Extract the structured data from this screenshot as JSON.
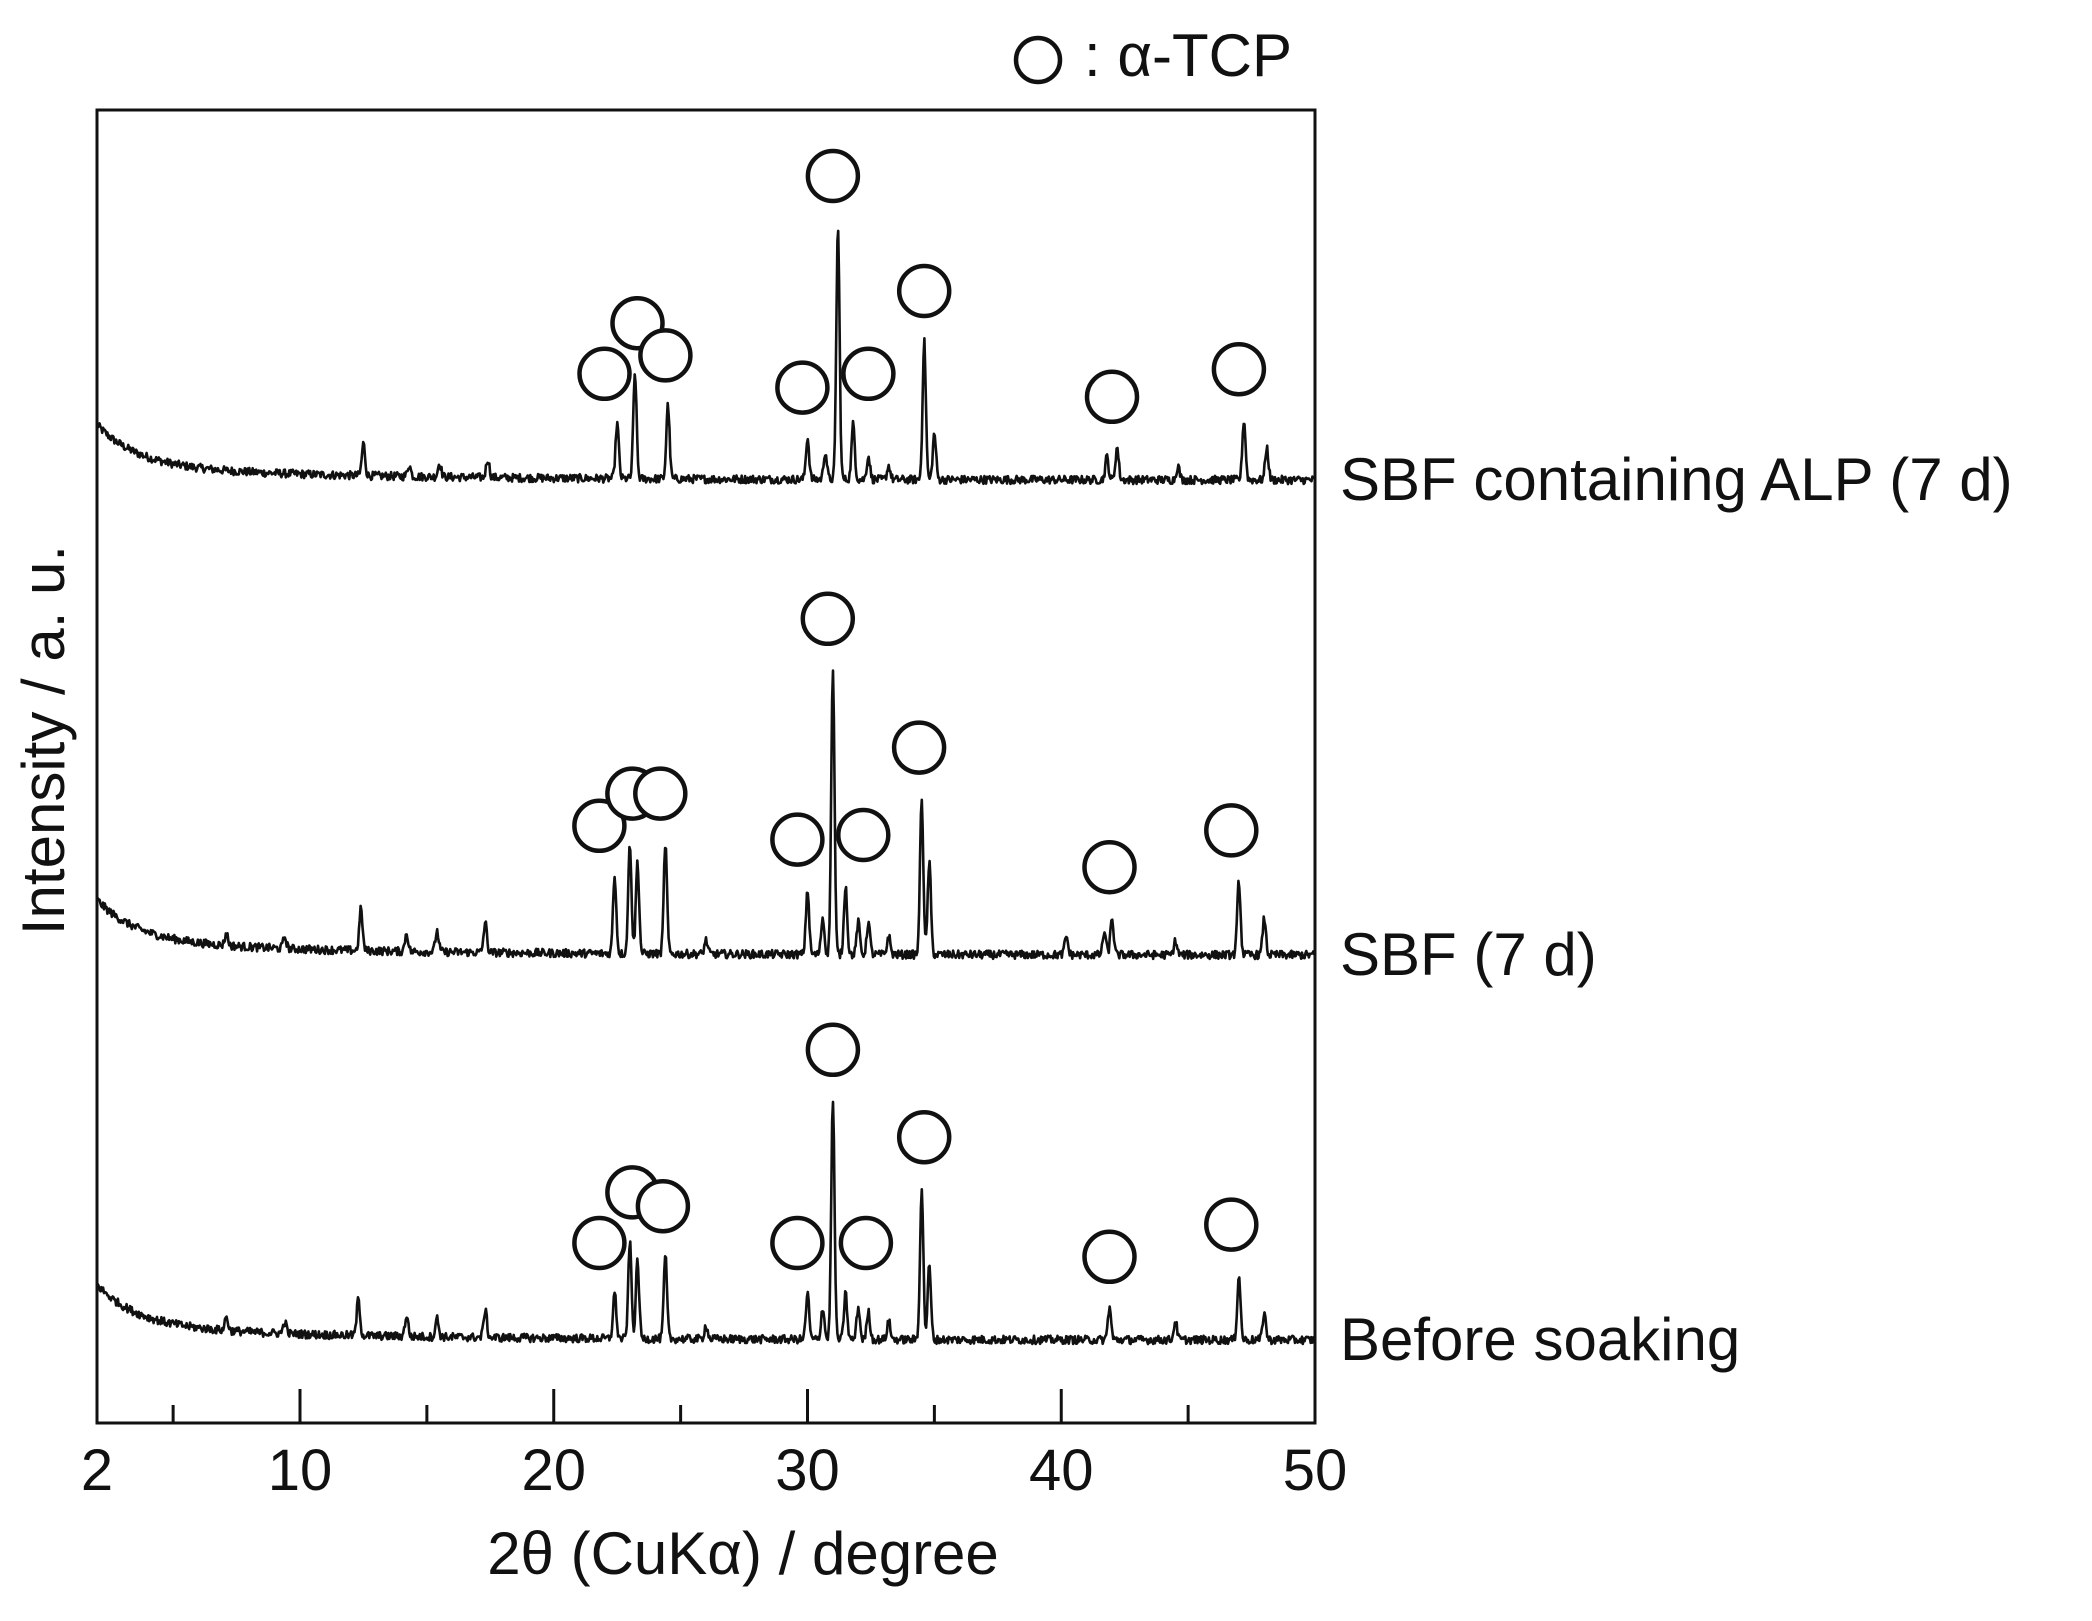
{
  "chart_data": {
    "type": "line",
    "title": "",
    "xlabel": "2θ (CuKα) / degree",
    "ylabel": "Intensity / a. u.",
    "xlim": [
      2,
      50
    ],
    "x_ticks_major": [
      2,
      10,
      20,
      30,
      40,
      50
    ],
    "x_ticks_minor": [
      5,
      15,
      25,
      35,
      45
    ],
    "y_ticks": [],
    "legend": {
      "marker": "open-circle",
      "label": ": α-TCP",
      "position": "top-right"
    },
    "series": [
      {
        "name": "SBF containing ALP (7 d)",
        "baseline": 0.0,
        "peaks": [
          {
            "x": 12.5,
            "h": 0.07
          },
          {
            "x": 14.3,
            "h": 0.025
          },
          {
            "x": 15.5,
            "h": 0.03
          },
          {
            "x": 17.4,
            "h": 0.04
          },
          {
            "x": 22.5,
            "h": 0.12
          },
          {
            "x": 23.2,
            "h": 0.23
          },
          {
            "x": 24.5,
            "h": 0.16
          },
          {
            "x": 30.0,
            "h": 0.09
          },
          {
            "x": 30.7,
            "h": 0.06
          },
          {
            "x": 31.2,
            "h": 0.55
          },
          {
            "x": 31.8,
            "h": 0.12
          },
          {
            "x": 32.4,
            "h": 0.05
          },
          {
            "x": 33.2,
            "h": 0.03
          },
          {
            "x": 34.6,
            "h": 0.3
          },
          {
            "x": 35.0,
            "h": 0.1
          },
          {
            "x": 41.8,
            "h": 0.05
          },
          {
            "x": 42.2,
            "h": 0.07
          },
          {
            "x": 44.6,
            "h": 0.03
          },
          {
            "x": 47.2,
            "h": 0.13
          },
          {
            "x": 48.1,
            "h": 0.07
          }
        ],
        "alpha_tcp_markers": [
          22.0,
          23.3,
          24.4,
          29.8,
          31.0,
          32.4,
          34.6,
          42.0,
          47.0
        ]
      },
      {
        "name": "SBF (7 d)",
        "baseline": 0.0,
        "peaks": [
          {
            "x": 7.1,
            "h": 0.025
          },
          {
            "x": 9.4,
            "h": 0.025
          },
          {
            "x": 12.4,
            "h": 0.09
          },
          {
            "x": 14.2,
            "h": 0.04
          },
          {
            "x": 15.4,
            "h": 0.045
          },
          {
            "x": 17.3,
            "h": 0.065
          },
          {
            "x": 22.4,
            "h": 0.17
          },
          {
            "x": 23.0,
            "h": 0.24
          },
          {
            "x": 23.3,
            "h": 0.2
          },
          {
            "x": 24.4,
            "h": 0.24
          },
          {
            "x": 26.0,
            "h": 0.03
          },
          {
            "x": 30.0,
            "h": 0.14
          },
          {
            "x": 30.6,
            "h": 0.08
          },
          {
            "x": 31.0,
            "h": 0.62
          },
          {
            "x": 31.5,
            "h": 0.15
          },
          {
            "x": 32.0,
            "h": 0.07
          },
          {
            "x": 32.4,
            "h": 0.07
          },
          {
            "x": 33.2,
            "h": 0.04
          },
          {
            "x": 34.5,
            "h": 0.34
          },
          {
            "x": 34.8,
            "h": 0.2
          },
          {
            "x": 40.2,
            "h": 0.04
          },
          {
            "x": 41.7,
            "h": 0.05
          },
          {
            "x": 42.0,
            "h": 0.08
          },
          {
            "x": 44.5,
            "h": 0.03
          },
          {
            "x": 47.0,
            "h": 0.16
          },
          {
            "x": 48.0,
            "h": 0.08
          }
        ],
        "alpha_tcp_markers": [
          21.8,
          23.1,
          24.2,
          29.6,
          30.8,
          32.2,
          34.4,
          41.9,
          46.7
        ]
      },
      {
        "name": "Before soaking",
        "baseline": 0.0,
        "peaks": [
          {
            "x": 7.1,
            "h": 0.03
          },
          {
            "x": 9.4,
            "h": 0.025
          },
          {
            "x": 12.3,
            "h": 0.08
          },
          {
            "x": 14.2,
            "h": 0.045
          },
          {
            "x": 15.4,
            "h": 0.04
          },
          {
            "x": 17.3,
            "h": 0.06
          },
          {
            "x": 22.4,
            "h": 0.1
          },
          {
            "x": 23.0,
            "h": 0.21
          },
          {
            "x": 23.3,
            "h": 0.17
          },
          {
            "x": 24.4,
            "h": 0.18
          },
          {
            "x": 26.0,
            "h": 0.03
          },
          {
            "x": 30.0,
            "h": 0.1
          },
          {
            "x": 30.6,
            "h": 0.07
          },
          {
            "x": 31.0,
            "h": 0.52
          },
          {
            "x": 31.5,
            "h": 0.1
          },
          {
            "x": 32.0,
            "h": 0.07
          },
          {
            "x": 32.4,
            "h": 0.06
          },
          {
            "x": 33.2,
            "h": 0.04
          },
          {
            "x": 34.5,
            "h": 0.33
          },
          {
            "x": 34.8,
            "h": 0.16
          },
          {
            "x": 41.9,
            "h": 0.07
          },
          {
            "x": 44.5,
            "h": 0.04
          },
          {
            "x": 47.0,
            "h": 0.14
          },
          {
            "x": 48.0,
            "h": 0.06
          }
        ],
        "alpha_tcp_markers": [
          21.8,
          23.1,
          24.3,
          29.6,
          31.0,
          32.3,
          34.6,
          41.9,
          46.7
        ]
      }
    ]
  }
}
